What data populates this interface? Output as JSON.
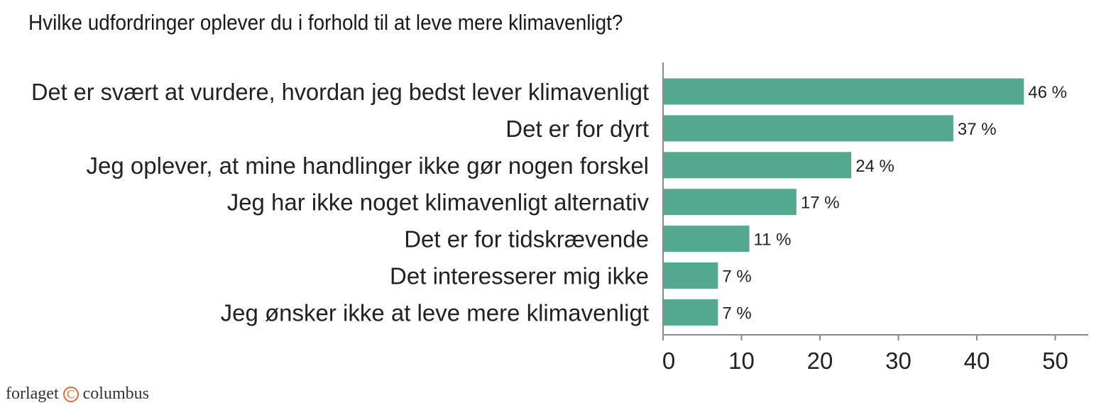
{
  "title": "Hvilke udfordringer oplever du i forhold til at leve mere klimavenligt?",
  "chart_data": {
    "type": "bar",
    "orientation": "horizontal",
    "title": "Hvilke udfordringer oplever du i forhold til at leve mere klimavenligt?",
    "xlabel": "",
    "ylabel": "",
    "categories": [
      "Det er svært at vurdere, hvordan jeg bedst lever klimavenligt",
      "Det er for dyrt",
      "Jeg oplever, at mine handlinger ikke gør nogen forskel",
      "Jeg har ikke noget klimavenligt alternativ",
      "Det er for tidskrævende",
      "Det interesserer mig ikke",
      "Jeg ønsker ikke at leve mere klimavenligt"
    ],
    "values": [
      46,
      37,
      24,
      17,
      11,
      7,
      7
    ],
    "value_labels": [
      "46 %",
      "37 %",
      "24 %",
      "17 %",
      "11 %",
      "7 %",
      "7 %"
    ],
    "xlim": [
      0,
      54
    ],
    "xticks": [
      0,
      10,
      20,
      30,
      40,
      50
    ],
    "grid": false,
    "legend": "none",
    "bar_color": "#53a98f",
    "axis_color": "#8a8a8a"
  },
  "logo": {
    "left": "forlaget",
    "mark": "C",
    "right": "columbus",
    "color": "#e06a3a"
  }
}
